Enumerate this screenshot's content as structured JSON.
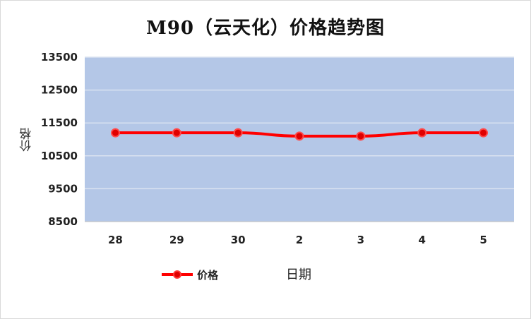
{
  "chart_data": {
    "type": "line",
    "title": "M90（云天化）价格趋势图",
    "xlabel": "日期",
    "ylabel": "价格",
    "categories": [
      "28",
      "29",
      "30",
      "2",
      "3",
      "4",
      "5"
    ],
    "series": [
      {
        "name": "价格",
        "values": [
          11200,
          11200,
          11200,
          11100,
          11100,
          11200,
          11200
        ],
        "color": "#ff0000"
      }
    ],
    "yticks": [
      "8500",
      "9500",
      "10500",
      "11500",
      "12500",
      "13500"
    ],
    "yticks_values": [
      8500,
      9500,
      10500,
      11500,
      12500,
      13500
    ],
    "ylim": [
      8500,
      13500
    ],
    "grid": true,
    "plot_background": "#b4c7e7",
    "legend_position": "bottom-left"
  }
}
